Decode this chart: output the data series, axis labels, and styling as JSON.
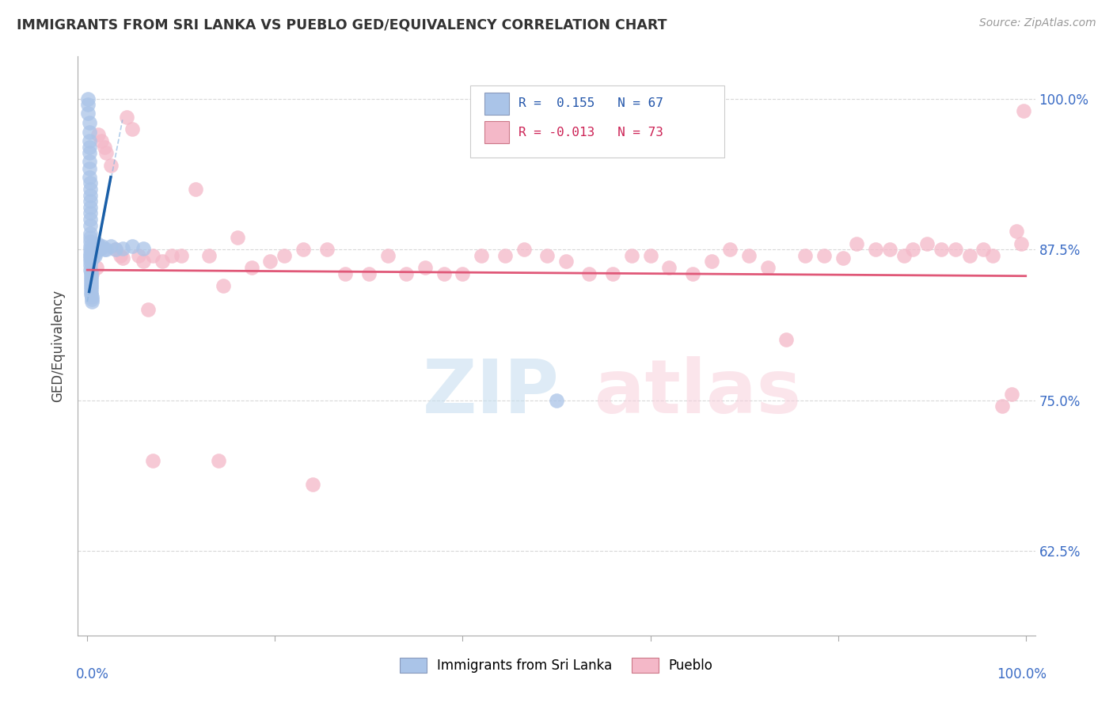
{
  "title": "IMMIGRANTS FROM SRI LANKA VS PUEBLO GED/EQUIVALENCY CORRELATION CHART",
  "source": "Source: ZipAtlas.com",
  "ylabel": "GED/Equivalency",
  "legend_sri_lanka": {
    "R": "0.155",
    "N": "67",
    "label": "Immigrants from Sri Lanka"
  },
  "legend_pueblo": {
    "R": "-0.013",
    "N": "73",
    "label": "Pueblo"
  },
  "blue_fill": "#aac4e8",
  "blue_edge": "#aac4e8",
  "blue_line_color": "#1a5fa8",
  "blue_dash_color": "#90b8e0",
  "pink_fill": "#f4b8c8",
  "pink_edge": "#f4b8c8",
  "pink_line_color": "#e05878",
  "background": "#ffffff",
  "grid_color": "#d8d8d8",
  "xlim": [
    0.0,
    1.0
  ],
  "ylim": [
    0.555,
    1.035
  ],
  "ytick_positions": [
    0.625,
    0.75,
    0.875,
    1.0
  ],
  "ytick_labels": [
    "62.5%",
    "75.0%",
    "87.5%",
    "100.0%"
  ],
  "blue_dots_x": [
    0.001,
    0.001,
    0.001,
    0.002,
    0.002,
    0.002,
    0.002,
    0.002,
    0.002,
    0.002,
    0.002,
    0.003,
    0.003,
    0.003,
    0.003,
    0.003,
    0.003,
    0.003,
    0.003,
    0.003,
    0.003,
    0.003,
    0.003,
    0.003,
    0.003,
    0.003,
    0.003,
    0.003,
    0.003,
    0.003,
    0.004,
    0.004,
    0.004,
    0.004,
    0.004,
    0.004,
    0.004,
    0.004,
    0.004,
    0.004,
    0.005,
    0.005,
    0.005,
    0.005,
    0.005,
    0.006,
    0.006,
    0.006,
    0.007,
    0.007,
    0.008,
    0.008,
    0.009,
    0.01,
    0.011,
    0.012,
    0.013,
    0.014,
    0.016,
    0.018,
    0.02,
    0.025,
    0.03,
    0.038,
    0.048,
    0.06,
    0.5
  ],
  "blue_dots_y": [
    1.0,
    0.995,
    0.988,
    0.98,
    0.972,
    0.965,
    0.96,
    0.955,
    0.948,
    0.942,
    0.935,
    0.93,
    0.925,
    0.92,
    0.915,
    0.91,
    0.905,
    0.9,
    0.895,
    0.888,
    0.885,
    0.882,
    0.878,
    0.875,
    0.872,
    0.87,
    0.868,
    0.865,
    0.862,
    0.858,
    0.856,
    0.854,
    0.852,
    0.85,
    0.848,
    0.846,
    0.844,
    0.842,
    0.84,
    0.838,
    0.836,
    0.834,
    0.832,
    0.87,
    0.875,
    0.872,
    0.868,
    0.874,
    0.876,
    0.878,
    0.87,
    0.872,
    0.875,
    0.878,
    0.88,
    0.875,
    0.878,
    0.876,
    0.878,
    0.875,
    0.875,
    0.878,
    0.875,
    0.876,
    0.878,
    0.876,
    0.75
  ],
  "pink_dots_x": [
    0.005,
    0.01,
    0.012,
    0.015,
    0.018,
    0.02,
    0.025,
    0.03,
    0.035,
    0.038,
    0.042,
    0.048,
    0.055,
    0.06,
    0.065,
    0.07,
    0.08,
    0.09,
    0.1,
    0.115,
    0.13,
    0.145,
    0.16,
    0.175,
    0.195,
    0.21,
    0.23,
    0.255,
    0.275,
    0.3,
    0.32,
    0.34,
    0.36,
    0.38,
    0.4,
    0.42,
    0.445,
    0.465,
    0.49,
    0.51,
    0.535,
    0.56,
    0.58,
    0.6,
    0.62,
    0.645,
    0.665,
    0.685,
    0.705,
    0.725,
    0.745,
    0.765,
    0.785,
    0.805,
    0.82,
    0.84,
    0.855,
    0.87,
    0.88,
    0.895,
    0.91,
    0.925,
    0.94,
    0.955,
    0.965,
    0.975,
    0.985,
    0.99,
    0.995,
    0.998,
    0.07,
    0.14,
    0.24
  ],
  "pink_dots_y": [
    0.855,
    0.86,
    0.97,
    0.965,
    0.96,
    0.955,
    0.945,
    0.875,
    0.87,
    0.868,
    0.985,
    0.975,
    0.87,
    0.865,
    0.825,
    0.87,
    0.865,
    0.87,
    0.87,
    0.925,
    0.87,
    0.845,
    0.885,
    0.86,
    0.865,
    0.87,
    0.875,
    0.875,
    0.855,
    0.855,
    0.87,
    0.855,
    0.86,
    0.855,
    0.855,
    0.87,
    0.87,
    0.875,
    0.87,
    0.865,
    0.855,
    0.855,
    0.87,
    0.87,
    0.86,
    0.855,
    0.865,
    0.875,
    0.87,
    0.86,
    0.8,
    0.87,
    0.87,
    0.868,
    0.88,
    0.875,
    0.875,
    0.87,
    0.875,
    0.88,
    0.875,
    0.875,
    0.87,
    0.875,
    0.87,
    0.745,
    0.755,
    0.89,
    0.88,
    0.99,
    0.7,
    0.7,
    0.68
  ],
  "pink_line_y_at_0": 0.858,
  "pink_line_y_at_1": 0.853,
  "blue_line_x0": 0.002,
  "blue_line_y0": 0.84,
  "blue_line_x1": 0.025,
  "blue_line_y1": 0.935
}
